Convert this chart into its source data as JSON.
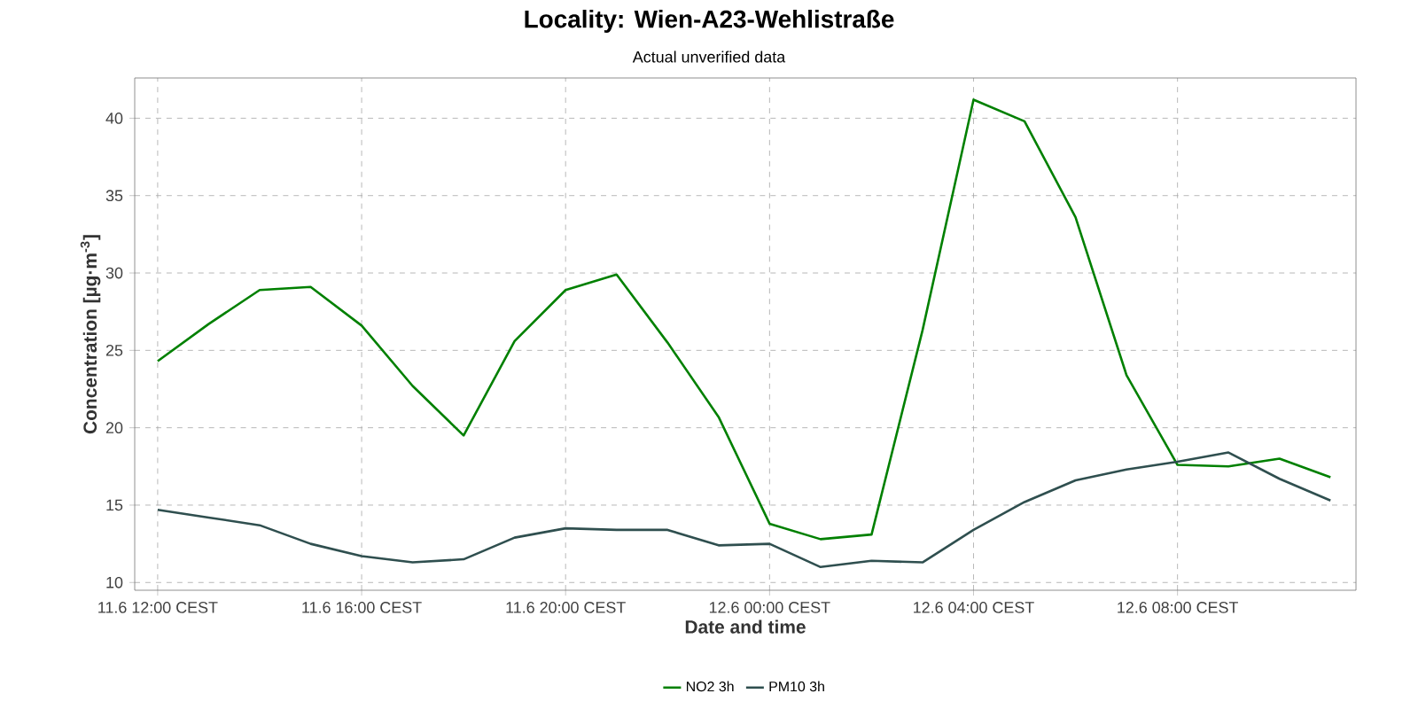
{
  "chart_data": {
    "type": "line",
    "title": "Locality: Wien-A23-Wehlistraße",
    "subtitle": "Actual unverified data",
    "xlabel": "Date and time",
    "ylabel": "Concentration [µg·m$^{-3}$]",
    "categories": [
      "11.6 12:00 CEST",
      null,
      null,
      null,
      "11.6 16:00 CEST",
      null,
      null,
      null,
      "11.6 20:00 CEST",
      null,
      null,
      null,
      "12.6 00:00 CEST",
      null,
      null,
      null,
      "12.6 04:00 CEST",
      null,
      null,
      null,
      "12.6 08:00 CEST",
      null,
      null,
      null
    ],
    "series": [
      {
        "name": "NO2 3h",
        "color": "#008000",
        "values": [
          24.3,
          26.7,
          28.9,
          29.1,
          26.6,
          22.7,
          19.5,
          25.6,
          28.9,
          29.9,
          25.5,
          20.7,
          13.8,
          12.8,
          13.1,
          26.3,
          41.2,
          39.8,
          33.6,
          23.4,
          17.6,
          17.5,
          18.0,
          16.8
        ]
      },
      {
        "name": "PM10 3h",
        "color": "#2f4f4f",
        "values": [
          14.7,
          14.2,
          13.7,
          12.5,
          11.7,
          11.3,
          11.5,
          12.9,
          13.5,
          13.4,
          13.4,
          12.4,
          12.5,
          11.0,
          11.4,
          11.3,
          13.4,
          15.2,
          16.6,
          17.3,
          17.8,
          18.4,
          16.7,
          15.3
        ]
      }
    ],
    "ylim": [
      9.5,
      42.6
    ],
    "yticks": [
      10,
      15,
      20,
      25,
      30,
      35,
      40
    ],
    "grid": true,
    "legend": "bottom",
    "marker": "none",
    "line_style": "solid"
  }
}
